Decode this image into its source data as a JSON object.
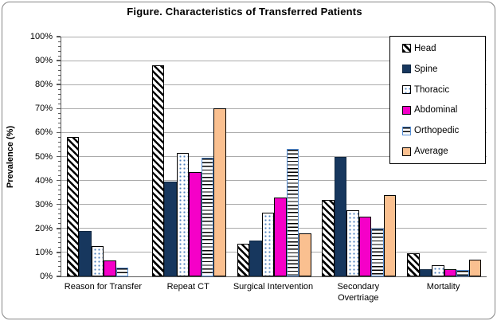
{
  "title": "Figure. Characteristics of Transferred Patients",
  "chart_data": {
    "type": "bar",
    "title": "Figure. Characteristics of Transferred Patients",
    "xlabel": "",
    "ylabel": "Prevalence (%)",
    "ylim": [
      0,
      100
    ],
    "ytick_step": 10,
    "ytick_labels": [
      "0%",
      "10%",
      "20%",
      "30%",
      "40%",
      "50%",
      "60%",
      "70%",
      "80%",
      "90%",
      "100%"
    ],
    "grid": true,
    "legend_position": "top-right",
    "categories": [
      "Reason for Transfer",
      "Repeat CT",
      "Surgical Intervention",
      "Secondary Overtriage",
      "Mortality"
    ],
    "series": [
      {
        "name": "Head",
        "key": "head",
        "pattern": "black-diagonal-hatch",
        "color": "#000000",
        "values": [
          58,
          88,
          13.5,
          32,
          9.5
        ]
      },
      {
        "name": "Spine",
        "key": "spine",
        "pattern": "solid",
        "color": "#17375E",
        "values": [
          19,
          39.5,
          15,
          50,
          3
        ]
      },
      {
        "name": "Thoracic",
        "key": "thoracic",
        "pattern": "blue-dots-on-white",
        "color": "#4F81BD",
        "values": [
          12.5,
          51.5,
          26.5,
          27.5,
          4.5
        ]
      },
      {
        "name": "Abdominal",
        "key": "abdominal",
        "pattern": "solid",
        "color": "#F500C8",
        "values": [
          6.5,
          43.5,
          33,
          25,
          3
        ]
      },
      {
        "name": "Orthopedic",
        "key": "orthopedic",
        "pattern": "horizontal-lines-on-white",
        "color": "#558ED5",
        "values": [
          3.5,
          49.5,
          53,
          20,
          2.5
        ]
      },
      {
        "name": "Average",
        "key": "average",
        "pattern": "solid",
        "color": "#FAC090",
        "values": [
          0,
          70,
          18,
          34,
          7
        ]
      }
    ]
  },
  "colors": {
    "gridline": "#ABABAB",
    "axis": "#595959",
    "frame_border": "#858585",
    "spine_navy": "#17375E",
    "abdominal_magenta": "#F500C8",
    "average_tan": "#FAC090",
    "thoracic_dot_blue": "#4F81BD",
    "orthopedic_border_blue": "#558ED5"
  }
}
